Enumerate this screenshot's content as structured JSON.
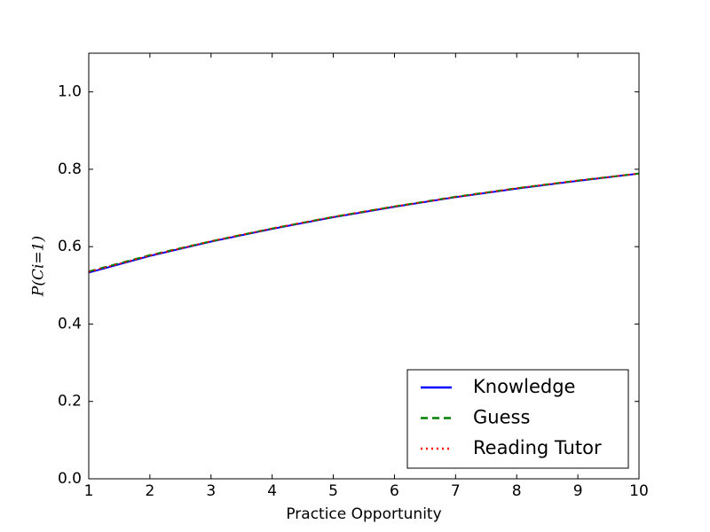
{
  "chart_data": {
    "type": "line",
    "xlabel": "Practice Opportunity",
    "ylabel": "P(Ci=1)",
    "x": [
      1,
      2,
      3,
      4,
      5,
      6,
      7,
      8,
      9,
      10
    ],
    "series": [
      {
        "name": "Knowledge",
        "color": "#0000ff",
        "linestyle": "solid",
        "values": [
          0.533,
          0.576,
          0.613,
          0.646,
          0.676,
          0.703,
          0.728,
          0.75,
          0.77,
          0.789
        ]
      },
      {
        "name": "Guess",
        "color": "#008000",
        "linestyle": "dashed",
        "values": [
          0.536,
          0.578,
          0.614,
          0.647,
          0.677,
          0.704,
          0.729,
          0.751,
          0.771,
          0.789
        ]
      },
      {
        "name": "Reading Tutor",
        "color": "#ff0000",
        "linestyle": "dashdot",
        "values": [
          0.535,
          0.577,
          0.614,
          0.647,
          0.677,
          0.704,
          0.728,
          0.751,
          0.771,
          0.789
        ]
      }
    ],
    "xlim": [
      1,
      10
    ],
    "xticks": [
      1,
      2,
      3,
      4,
      5,
      6,
      7,
      8,
      9,
      10
    ],
    "ylim": [
      0,
      1.1
    ],
    "yticks": [
      {
        "value": 0,
        "label": "0.0"
      },
      0.2,
      0.4,
      0.6,
      0.8,
      {
        "value": 1,
        "label": "1.0"
      }
    ],
    "grid": false,
    "legend": "lower right"
  }
}
